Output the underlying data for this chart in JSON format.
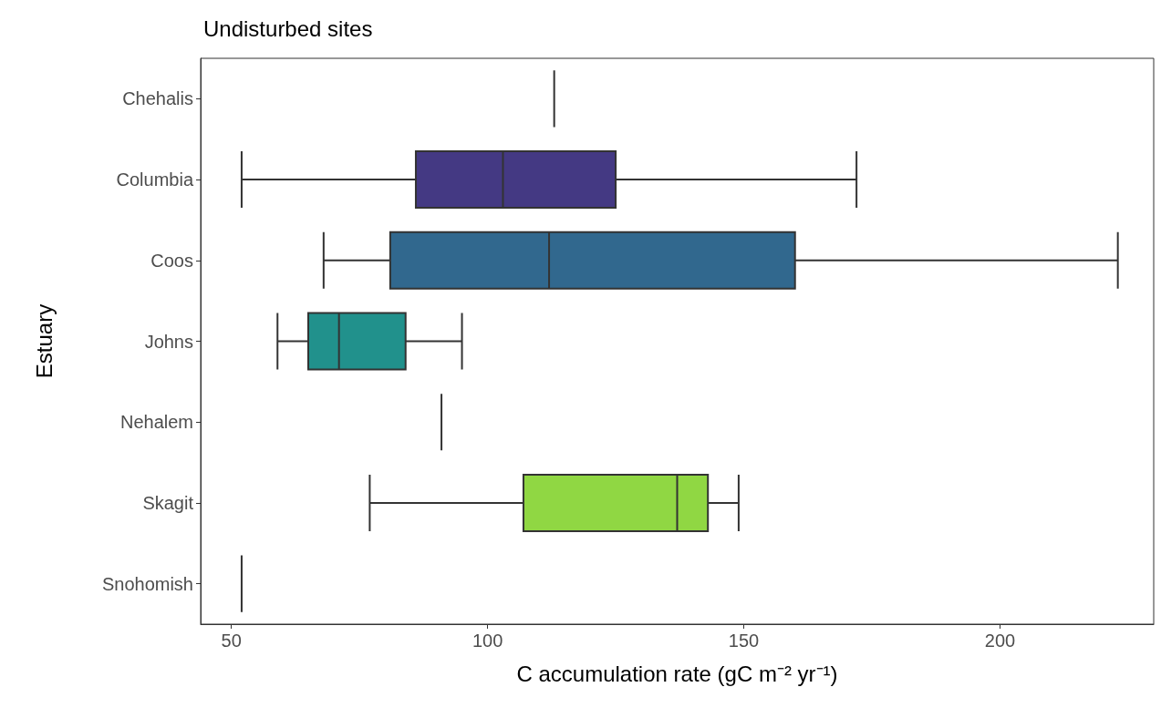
{
  "chart_data": {
    "type": "box",
    "title": "Undisturbed sites",
    "xlabel": "C accumulation rate (gC m⁻² yr⁻¹)",
    "ylabel": "Estuary",
    "orientation": "horizontal",
    "categories": [
      "Chehalis",
      "Columbia",
      "Coos",
      "Johns",
      "Nehalem",
      "Skagit",
      "Snohomish"
    ],
    "boxes": [
      {
        "low": 113,
        "q1": 113,
        "median": 113,
        "q3": 113,
        "high": 113
      },
      {
        "low": 52,
        "q1": 86,
        "median": 103,
        "q3": 125,
        "high": 172
      },
      {
        "low": 68,
        "q1": 81,
        "median": 112,
        "q3": 160,
        "high": 223
      },
      {
        "low": 59,
        "q1": 65,
        "median": 71,
        "q3": 84,
        "high": 95
      },
      {
        "low": 91,
        "q1": 91,
        "median": 91,
        "q3": 91,
        "high": 91
      },
      {
        "low": 77,
        "q1": 107,
        "median": 137,
        "q3": 143,
        "high": 149
      },
      {
        "low": 52,
        "q1": 52,
        "median": 52,
        "q3": 52,
        "high": 52
      }
    ],
    "colors": [
      null,
      "#443983",
      "#31688e",
      "#21918c",
      null,
      "#90d743",
      null
    ],
    "xlim": [
      44,
      230
    ],
    "xticks": [
      50,
      100,
      150,
      200
    ]
  }
}
